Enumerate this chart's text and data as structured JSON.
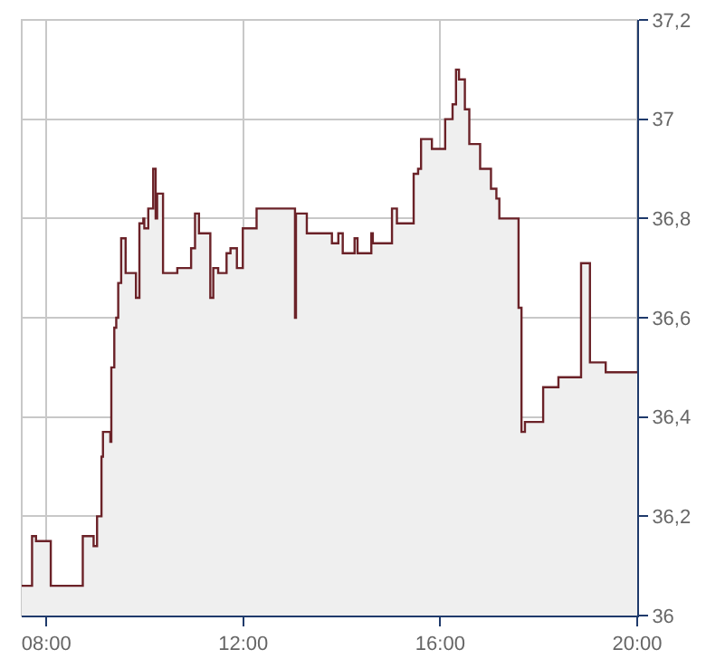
{
  "chart_data": {
    "type": "step",
    "grid": true,
    "marker": "none",
    "xlim": [
      7.5,
      20
    ],
    "ylim": [
      36,
      37.2
    ],
    "xticks": [
      {
        "value": 8,
        "label": "08:00"
      },
      {
        "value": 12,
        "label": "12:00"
      },
      {
        "value": 16,
        "label": "16:00"
      },
      {
        "value": 20,
        "label": "20:00"
      }
    ],
    "yticks": [
      36,
      {
        "value": 36.2,
        "label": "36,2"
      },
      {
        "value": 36.4,
        "label": "36,4"
      },
      {
        "value": 36.6,
        "label": "36,6"
      },
      {
        "value": 36.8,
        "label": "36,8"
      },
      37,
      {
        "value": 37.2,
        "label": "37,2"
      }
    ],
    "series": [
      {
        "type": "area",
        "color": "#efefef",
        "x": [
          7.5,
          7.71,
          7.79,
          8.09,
          8.74,
          8.96,
          9.03,
          9.12,
          9.15,
          9.3,
          9.32,
          9.38,
          9.42,
          9.46,
          9.52,
          9.61,
          9.82,
          9.89,
          9.97,
          9.99,
          10.07,
          10.17,
          10.22,
          10.25,
          10.37,
          10.66,
          10.94,
          11.02,
          11.1,
          11.33,
          11.39,
          11.49,
          11.66,
          11.74,
          11.87,
          11.99,
          12.27,
          13.05,
          13.07,
          13.29,
          13.8,
          13.93,
          14.02,
          14.2,
          14.26,
          14.32,
          14.6,
          14.63,
          15.02,
          15.12,
          15.46,
          15.55,
          15.61,
          15.83,
          16.1,
          16.25,
          16.32,
          16.38,
          16.5,
          16.59,
          16.81,
          17.03,
          17.14,
          17.2,
          17.59,
          17.65,
          17.72,
          18.09,
          18.4,
          18.86,
          19.04,
          19.36,
          20
        ],
        "values": [
          36.06,
          36.16,
          36.15,
          36.06,
          36.16,
          36.14,
          36.2,
          36.32,
          36.37,
          36.35,
          36.5,
          36.58,
          36.6,
          36.67,
          36.76,
          36.69,
          36.64,
          36.79,
          36.8,
          36.78,
          36.82,
          36.9,
          36.8,
          36.85,
          36.69,
          36.7,
          36.74,
          36.81,
          36.77,
          36.64,
          36.7,
          36.69,
          36.73,
          36.74,
          36.7,
          36.78,
          36.82,
          36.6,
          36.81,
          36.77,
          36.75,
          36.77,
          36.73,
          36.73,
          36.76,
          36.73,
          36.77,
          36.75,
          36.82,
          36.79,
          36.89,
          36.9,
          36.96,
          36.94,
          37,
          37.03,
          37.1,
          37.08,
          37.02,
          36.95,
          36.9,
          36.86,
          36.84,
          36.8,
          36.62,
          36.37,
          36.39,
          36.46,
          36.48,
          36.71,
          36.51,
          36.49,
          36.49
        ]
      },
      {
        "color": "#6b2228",
        "x": [
          7.5,
          7.71,
          7.79,
          8.09,
          8.74,
          8.96,
          9.03,
          9.12,
          9.15,
          9.3,
          9.32,
          9.38,
          9.42,
          9.46,
          9.52,
          9.61,
          9.82,
          9.89,
          9.97,
          9.99,
          10.07,
          10.17,
          10.22,
          10.25,
          10.37,
          10.66,
          10.94,
          11.02,
          11.1,
          11.33,
          11.39,
          11.49,
          11.66,
          11.74,
          11.87,
          11.99,
          12.27,
          13.05,
          13.07,
          13.29,
          13.8,
          13.93,
          14.02,
          14.2,
          14.26,
          14.32,
          14.6,
          14.63,
          15.02,
          15.12,
          15.46,
          15.55,
          15.61,
          15.83,
          16.1,
          16.25,
          16.32,
          16.38,
          16.5,
          16.59,
          16.81,
          17.03,
          17.14,
          17.2,
          17.59,
          17.65,
          17.72,
          18.09,
          18.4,
          18.86,
          19.04,
          19.36,
          20
        ],
        "values": [
          36.06,
          36.16,
          36.15,
          36.06,
          36.16,
          36.14,
          36.2,
          36.32,
          36.37,
          36.35,
          36.5,
          36.58,
          36.6,
          36.67,
          36.76,
          36.69,
          36.64,
          36.79,
          36.8,
          36.78,
          36.82,
          36.9,
          36.8,
          36.85,
          36.69,
          36.7,
          36.74,
          36.81,
          36.77,
          36.64,
          36.7,
          36.69,
          36.73,
          36.74,
          36.7,
          36.78,
          36.82,
          36.6,
          36.81,
          36.77,
          36.75,
          36.77,
          36.73,
          36.73,
          36.76,
          36.73,
          36.77,
          36.75,
          36.82,
          36.79,
          36.89,
          36.9,
          36.96,
          36.94,
          37,
          37.03,
          37.1,
          37.08,
          37.02,
          36.95,
          36.9,
          36.86,
          36.84,
          36.8,
          36.62,
          36.37,
          36.39,
          36.46,
          36.48,
          36.71,
          36.51,
          36.49,
          36.49
        ]
      }
    ]
  }
}
